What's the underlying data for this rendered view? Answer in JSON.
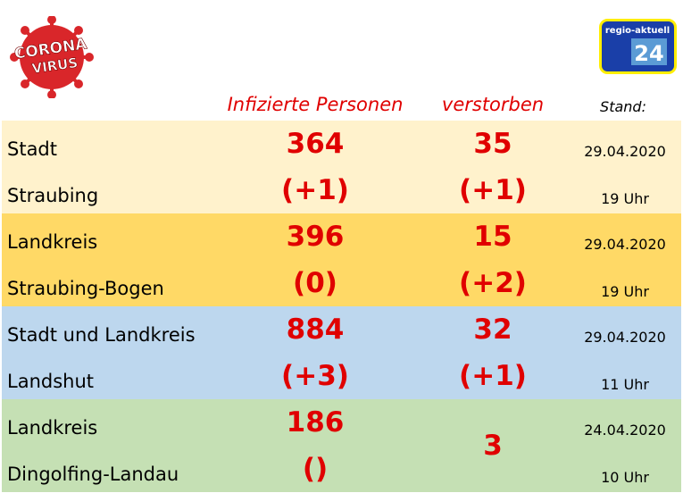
{
  "header": {
    "logo_left": [
      "CORONA",
      "VIRUS"
    ],
    "logo_right": {
      "text": "regio-aktuell",
      "number": "24"
    },
    "columns": [
      "Infizierte Personen",
      "verstorben",
      "Stand:"
    ]
  },
  "table": {
    "rows": [
      {
        "name": [
          "Stadt",
          "Straubing"
        ],
        "infected": "364",
        "infected_change": "(+1)",
        "deaths": "35",
        "deaths_change": "(+1)",
        "date": "29.04.2020",
        "time": "19 Uhr",
        "color": "#fff2cc"
      },
      {
        "name": [
          "Landkreis",
          "Straubing-Bogen"
        ],
        "infected": "396",
        "infected_change": "(0)",
        "deaths": "15",
        "deaths_change": "(+2)",
        "date": "29.04.2020",
        "time": "19 Uhr",
        "color": "#ffd966"
      },
      {
        "name": [
          "Stadt und Landkreis",
          "Landshut"
        ],
        "infected": "884",
        "infected_change": "(+3)",
        "deaths": "32",
        "deaths_change": "(+1)",
        "date": "29.04.2020",
        "time": "11 Uhr",
        "color": "#bdd7ee"
      },
      {
        "name": [
          "Landkreis",
          "Dingolfing-Landau"
        ],
        "infected": "186",
        "infected_change": "()",
        "deaths": "3",
        "date": "24.04.2020",
        "time": "10 Uhr",
        "color": "#c5e0b4"
      }
    ]
  }
}
